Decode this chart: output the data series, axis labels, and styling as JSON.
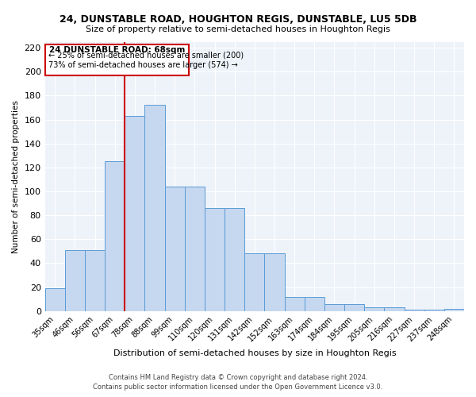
{
  "title1": "24, DUNSTABLE ROAD, HOUGHTON REGIS, DUNSTABLE, LU5 5DB",
  "title2": "Size of property relative to semi-detached houses in Houghton Regis",
  "xlabel": "Distribution of semi-detached houses by size in Houghton Regis",
  "ylabel": "Number of semi-detached properties",
  "categories": [
    "35sqm",
    "46sqm",
    "56sqm",
    "67sqm",
    "78sqm",
    "88sqm",
    "99sqm",
    "110sqm",
    "120sqm",
    "131sqm",
    "142sqm",
    "152sqm",
    "163sqm",
    "174sqm",
    "184sqm",
    "195sqm",
    "205sqm",
    "216sqm",
    "227sqm",
    "237sqm",
    "248sqm"
  ],
  "values": [
    19,
    51,
    51,
    125,
    163,
    172,
    104,
    104,
    86,
    86,
    48,
    48,
    12,
    12,
    6,
    6,
    3,
    3,
    1,
    1,
    2
  ],
  "bar_color": "#c5d8f0",
  "bar_edge_color": "#5b9bd5",
  "property_label": "24 DUNSTABLE ROAD: 68sqm",
  "pct_smaller": 25,
  "count_smaller": 200,
  "pct_larger": 73,
  "count_larger": 574,
  "vline_x": 3.5,
  "annotation_box_color": "#cc0000",
  "ylim": [
    0,
    225
  ],
  "yticks": [
    0,
    20,
    40,
    60,
    80,
    100,
    120,
    140,
    160,
    180,
    200,
    220
  ],
  "footer1": "Contains HM Land Registry data © Crown copyright and database right 2024.",
  "footer2": "Contains public sector information licensed under the Open Government Licence v3.0.",
  "bg_color": "#eef3fa",
  "grid_color": "#ffffff",
  "fig_width": 6.0,
  "fig_height": 5.0,
  "fig_dpi": 100
}
